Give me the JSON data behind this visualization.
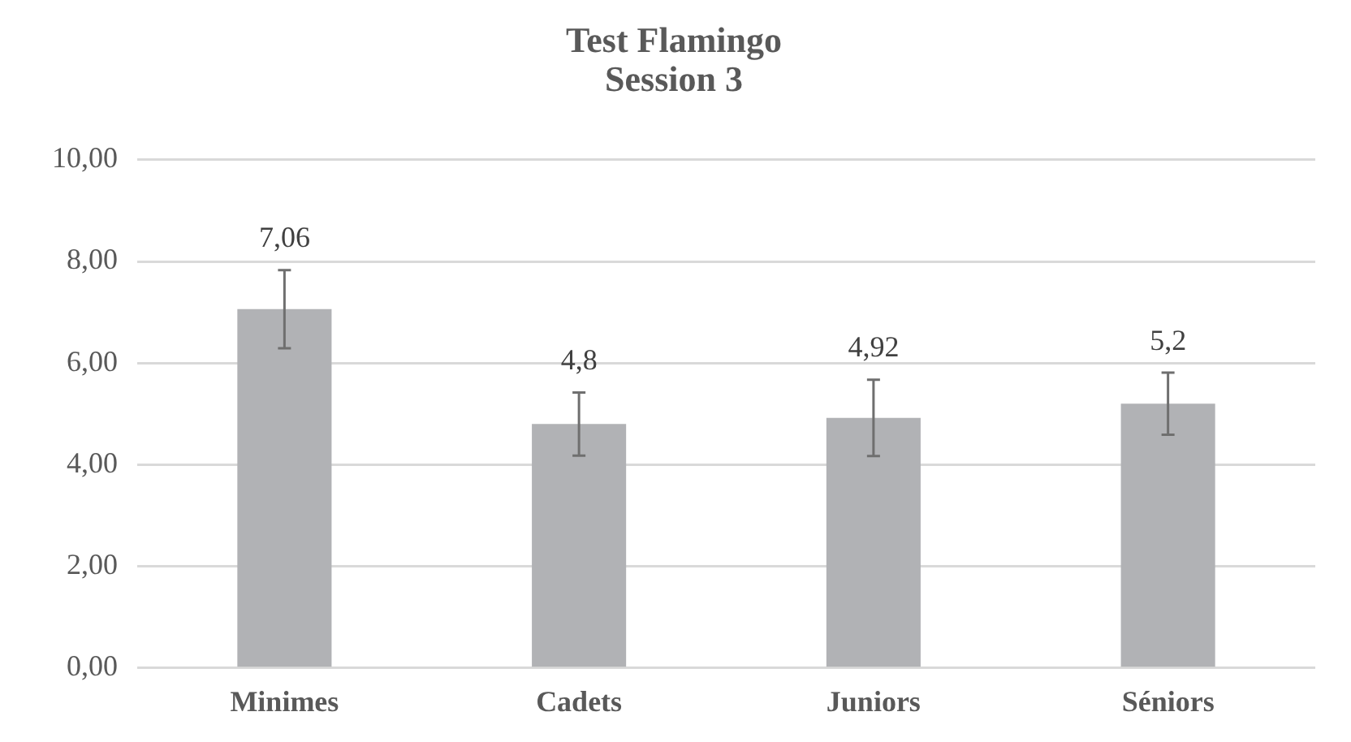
{
  "chart_data": {
    "type": "bar",
    "title": "Test Flamingo\nSession 3",
    "categories": [
      "Minimes",
      "Cadets",
      "Juniors",
      "Séniors"
    ],
    "values": [
      7.06,
      4.8,
      4.92,
      5.2
    ],
    "errors": [
      0.77,
      0.62,
      0.75,
      0.61
    ],
    "value_labels": [
      "7,06",
      "4,8",
      "4,92",
      "5,2"
    ],
    "color": "#b1b2b5",
    "ylim": [
      0,
      10
    ],
    "yticks": [
      {
        "value": 0,
        "label": "0,00"
      },
      {
        "value": 2,
        "label": "2,00"
      },
      {
        "value": 4,
        "label": "4,00"
      },
      {
        "value": 6,
        "label": "6,00"
      },
      {
        "value": 8,
        "label": "8,00"
      },
      {
        "value": 10,
        "label": "10,00"
      }
    ],
    "grid": "y",
    "legend": false
  }
}
